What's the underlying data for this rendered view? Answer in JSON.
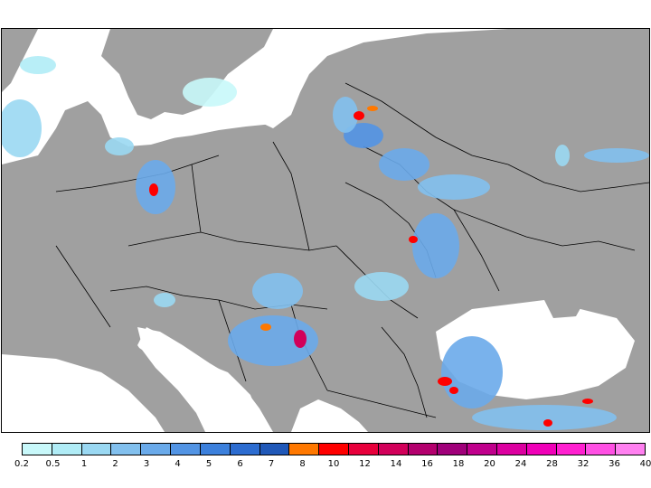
{
  "legend": {
    "labels": [
      "0.2",
      "0.5",
      "1",
      "2",
      "3",
      "4",
      "5",
      "6",
      "7",
      "8",
      "10",
      "12",
      "14",
      "16",
      "18",
      "20",
      "24",
      "28",
      "32",
      "36",
      "40"
    ],
    "colors": [
      "#c8f8fa",
      "#b0ecf6",
      "#9ad8f2",
      "#82c0ee",
      "#6aaaea",
      "#5294e4",
      "#3c80dc",
      "#2c6cd0",
      "#2058b8",
      "#ff7800",
      "#ff0000",
      "#e8003c",
      "#d2005a",
      "#b4006e",
      "#a0007a",
      "#c0008c",
      "#dc00a0",
      "#f000b8",
      "#ff20d0",
      "#ff50e4",
      "#ff80f0"
    ]
  },
  "map": {
    "land_color": "#a0a0a0",
    "sea_color": "#ffffff",
    "border_color": "#000000"
  }
}
